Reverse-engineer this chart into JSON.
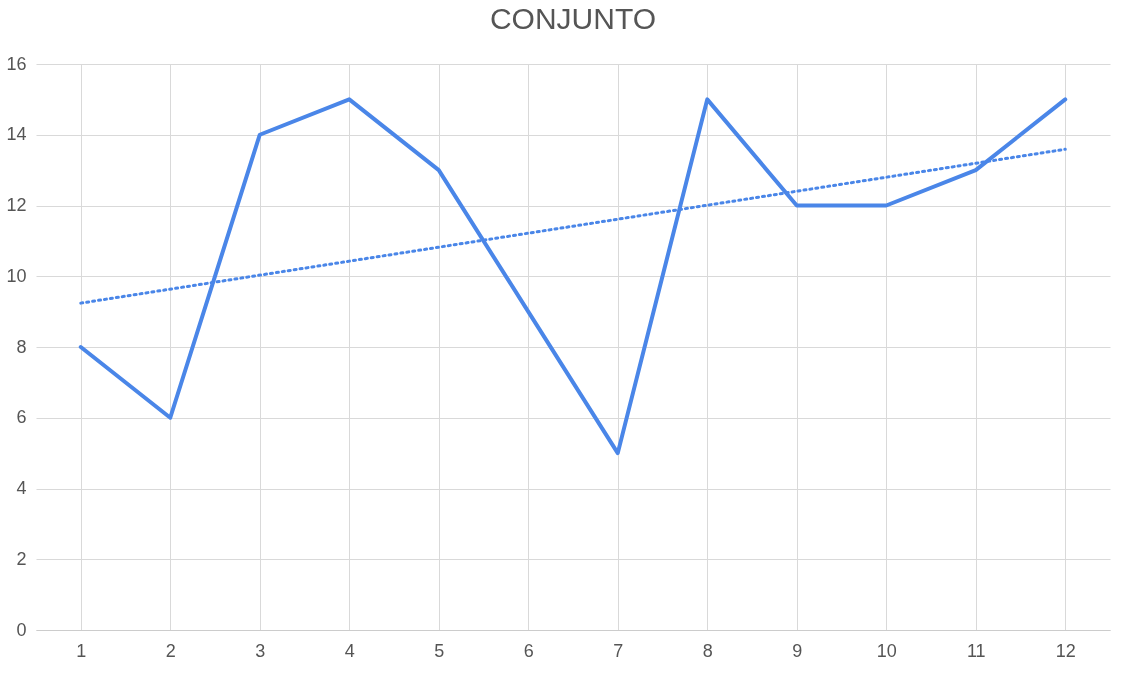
{
  "chart_data": {
    "type": "line",
    "title": "CONJUNTO",
    "x": [
      1,
      2,
      3,
      4,
      5,
      6,
      7,
      8,
      9,
      10,
      11,
      12
    ],
    "xlim": [
      0.5,
      12.5
    ],
    "xticks": [
      1,
      2,
      3,
      4,
      5,
      6,
      7,
      8,
      9,
      10,
      11,
      12
    ],
    "ylim": [
      0,
      16
    ],
    "yticks": [
      0,
      2,
      4,
      6,
      8,
      10,
      12,
      14,
      16
    ],
    "grid": true,
    "marker": "none",
    "series": [
      {
        "color": "#4a86e8",
        "line_style": "solid",
        "values": [
          8,
          6,
          14,
          15,
          13,
          9,
          5,
          15,
          12,
          12,
          13,
          15
        ]
      },
      {
        "type": "line",
        "color": "#4a86e8",
        "line_style": "dotted",
        "x": [
          1,
          12
        ],
        "values": [
          9.24,
          13.59
        ]
      }
    ]
  }
}
